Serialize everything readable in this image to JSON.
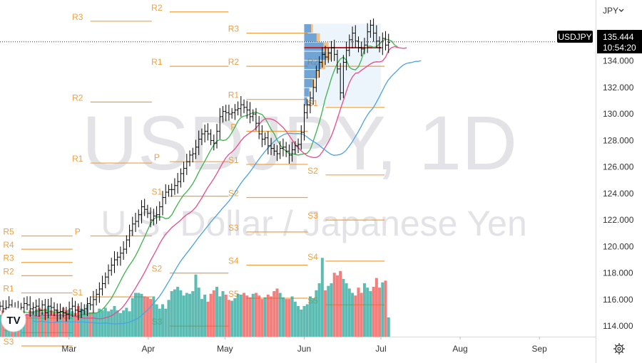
{
  "watermark": {
    "symbol": "USDJPY, 1D",
    "description": "U.S. Dollar / Japanese Yen"
  },
  "currency_selector": {
    "label": "JPY",
    "chevron_icon": "chevron-down-icon"
  },
  "symbol_tag": {
    "label": "USDJPY"
  },
  "last_price": {
    "value": "135.444",
    "countdown": "10:54:20"
  },
  "settings_icon": "gear-icon",
  "logo": {
    "name": "tradingview-logo-icon",
    "text": "TV"
  },
  "colors": {
    "up": "#26a69a",
    "down": "#ef5350",
    "bar": "#000000",
    "pivot": "#f0a040",
    "ma_fast": "#3cb44b",
    "ma_mid": "#e84a8b",
    "ma_slow": "#4aa3df",
    "vol_up": "#26a69a",
    "vol_down": "#ef5350",
    "last_price_bg": "#000000",
    "poc": "#c0202a",
    "vp_bar": "#3b82c4",
    "vp_value": "#f0a040"
  },
  "chart_data": {
    "type": "ohlc",
    "price_axis": {
      "ticks": [
        "114.000",
        "116.000",
        "118.000",
        "120.000",
        "122.000",
        "124.000",
        "126.000",
        "128.000",
        "130.000",
        "132.000",
        "134.000",
        "136.000"
      ],
      "ylim": [
        113.2,
        138.6
      ]
    },
    "time_axis": {
      "ticks": [
        "Mar",
        "Apr",
        "May",
        "Jun",
        "Jul",
        "Aug",
        "Sep"
      ],
      "tick_days": [
        59,
        90,
        120,
        151,
        181,
        212,
        243
      ],
      "xlim_days": [
        32,
        265
      ]
    },
    "pivot_levels": [
      {
        "month": "Feb",
        "levels": [
          [
            "R5",
            120.8
          ],
          [
            "R4",
            119.8
          ],
          [
            "R3",
            118.8
          ],
          [
            "R2",
            117.8
          ],
          [
            "R1",
            116.5
          ],
          [
            "S1",
            114.6
          ],
          [
            "S2",
            113.5
          ],
          [
            "S3",
            112.5
          ]
        ]
      },
      {
        "month": "Mar",
        "levels": [
          [
            "R3",
            137.0
          ],
          [
            "R2",
            130.9
          ],
          [
            "R1",
            126.3
          ],
          [
            "P",
            120.8
          ],
          [
            "S1",
            116.2
          ]
        ]
      },
      {
        "month": "Apr",
        "levels": [
          [
            "R2",
            137.7
          ],
          [
            "R1",
            133.6
          ],
          [
            "P",
            126.4
          ],
          [
            "S1",
            123.8
          ],
          [
            "S2",
            118.0
          ],
          [
            "S3",
            114.0
          ]
        ]
      },
      {
        "month": "May",
        "levels": [
          [
            "R3",
            136.1
          ],
          [
            "R2",
            133.6
          ],
          [
            "R1",
            131.1
          ],
          [
            "P",
            128.7
          ],
          [
            "S1",
            126.2
          ],
          [
            "S2",
            123.7
          ],
          [
            "S3",
            121.1
          ],
          [
            "S4",
            118.6
          ],
          [
            "S5",
            116.1
          ]
        ]
      },
      {
        "month": "Jun",
        "levels": [
          [
            "R2",
            133.6
          ],
          [
            "S1",
            130.5
          ],
          [
            "S2",
            125.4
          ],
          [
            "S3",
            122.0
          ],
          [
            "S4",
            118.9
          ],
          [
            "S5",
            115.6
          ]
        ]
      }
    ],
    "ohlc_start_day": 32,
    "ohlc_closes": [
      115.5,
      115.3,
      115.4,
      115.6,
      115.2,
      115.3,
      115.1,
      115.4,
      115.7,
      115.6,
      115.3,
      115.4,
      115.5,
      115.2,
      115.6,
      115.0,
      115.5,
      115.4,
      115.2,
      115.0,
      115.1,
      115.0,
      114.9,
      115.3,
      115.5,
      115.2,
      115.1,
      115.2,
      115.3,
      115.7,
      115.6,
      116.0,
      116.4,
      116.8,
      117.2,
      117.7,
      118.2,
      118.6,
      119.0,
      119.2,
      119.5,
      119.8,
      120.5,
      121.2,
      121.7,
      121.9,
      122.4,
      123.0,
      122.8,
      122.5,
      122.0,
      122.3,
      122.4,
      123.0,
      123.7,
      124.1,
      124.3,
      124.3,
      124.6,
      124.9,
      125.5,
      125.9,
      126.4,
      126.9,
      127.0,
      127.5,
      128.1,
      128.5,
      128.7,
      128.5,
      128.0,
      127.8,
      128.7,
      129.8,
      130.2,
      130.1,
      130.0,
      130.1,
      130.3,
      130.4,
      130.7,
      130.5,
      130.3,
      129.8,
      130.0,
      129.3,
      128.5,
      128.1,
      128.2,
      127.6,
      127.4,
      127.2,
      127.0,
      127.4,
      127.5,
      127.2,
      126.9,
      127.3,
      127.6,
      127.7,
      128.6,
      130.1,
      130.7,
      131.2,
      132.0,
      133.3,
      133.9,
      134.5,
      134.3,
      134.6,
      135.0,
      134.5,
      133.4,
      131.6,
      133.9,
      134.8,
      135.6,
      136.1,
      135.5,
      135.0,
      134.9,
      135.2,
      136.2,
      136.7,
      136.1,
      135.5,
      135.0,
      135.7,
      135.2,
      135.4
    ],
    "volume_scale": "relative 0-1",
    "volume": [
      0.25,
      0.3,
      0.28,
      0.26,
      0.32,
      0.31,
      0.28,
      0.27,
      0.24,
      0.26,
      0.3,
      0.29,
      0.31,
      0.33,
      0.28,
      0.32,
      0.35,
      0.3,
      0.27,
      0.31,
      0.26,
      0.33,
      0.3,
      0.31,
      0.29,
      0.27,
      0.35,
      0.32,
      0.3,
      0.37,
      0.28,
      0.28,
      0.27,
      0.32,
      0.3,
      0.33,
      0.29,
      0.31,
      0.35,
      0.3,
      0.27,
      0.3,
      0.33,
      0.29,
      0.44,
      0.5,
      0.5,
      0.49,
      0.46,
      0.45,
      0.43,
      0.46,
      0.37,
      0.32,
      0.37,
      0.32,
      0.42,
      0.52,
      0.54,
      0.57,
      0.53,
      0.47,
      0.5,
      0.49,
      0.52,
      0.71,
      0.56,
      0.43,
      0.48,
      0.4,
      0.49,
      0.53,
      0.57,
      0.46,
      0.52,
      0.48,
      0.42,
      0.41,
      0.44,
      0.49,
      0.48,
      0.5,
      0.47,
      0.45,
      0.49,
      0.5,
      0.47,
      0.43,
      0.45,
      0.48,
      0.46,
      0.52,
      0.55,
      0.5,
      0.45,
      0.43,
      0.43,
      0.46,
      0.4,
      0.35,
      0.31,
      0.35,
      0.37,
      0.46,
      0.44,
      0.53,
      0.61,
      0.9,
      0.53,
      0.58,
      0.61,
      0.73,
      0.7,
      0.75,
      0.66,
      0.61,
      0.55,
      0.5,
      0.47,
      0.56,
      0.5,
      0.61,
      0.56,
      0.52,
      0.57,
      0.67,
      0.56,
      0.62,
      0.64,
      0.22
    ],
    "volume_profile": [
      0.32,
      0.58,
      0.9,
      1.0,
      0.78,
      0.55,
      0.38,
      0.22,
      0.12
    ]
  }
}
